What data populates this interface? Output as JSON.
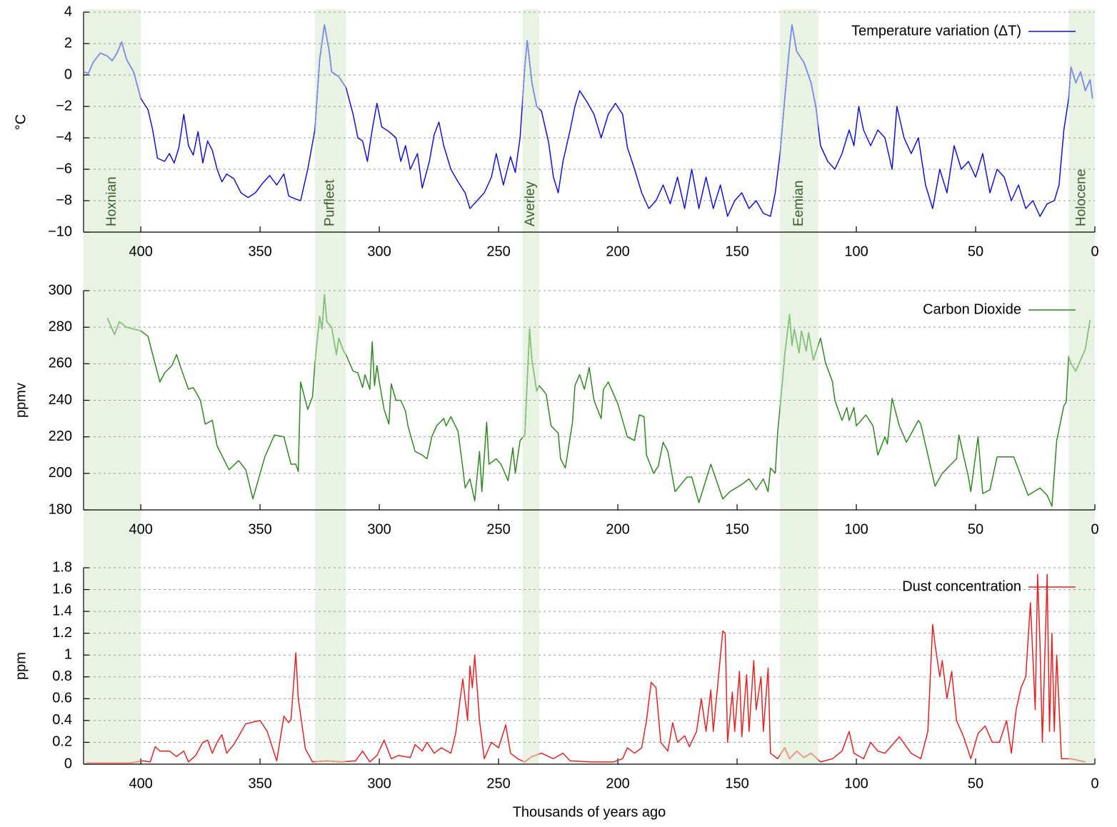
{
  "chart_data": [
    {
      "type": "line",
      "y_label": "°C",
      "legend": "upper right",
      "grid": true,
      "xlim": [
        424,
        0
      ],
      "xticks": [
        400,
        350,
        300,
        250,
        200,
        150,
        100,
        50,
        0
      ],
      "ylim": [
        -10,
        4
      ],
      "yticks": [
        {
          "value": -10,
          "label": "−10"
        },
        {
          "value": -8,
          "label": "−8"
        },
        {
          "value": -6,
          "label": "−6"
        },
        {
          "value": -4,
          "label": "−4"
        },
        {
          "value": -2,
          "label": "−2"
        },
        0,
        2,
        4
      ],
      "periods": [
        {
          "label": "Hoxnian",
          "start": 424,
          "end": 400
        },
        {
          "label": "Purfleet",
          "start": 327,
          "end": 314
        },
        {
          "label": "Averley",
          "start": 240,
          "end": 233
        },
        {
          "label": "Eemian",
          "start": 132,
          "end": 116
        },
        {
          "label": "Holocene",
          "start": 11,
          "end": 0
        }
      ],
      "period_color": "#e9f3e4",
      "x": [
        424,
        422,
        420,
        417,
        414,
        412,
        410,
        408,
        406,
        403,
        400,
        397,
        395,
        393,
        390,
        388,
        386,
        384,
        382,
        380,
        378,
        376,
        374,
        372,
        370,
        368,
        366,
        364,
        361,
        358,
        355,
        352,
        349,
        346,
        343,
        340,
        338,
        335,
        333,
        330,
        327,
        325,
        323,
        321,
        320,
        317,
        314,
        311,
        309,
        307,
        305,
        303,
        301,
        299,
        296,
        293,
        291,
        289,
        287,
        284,
        282,
        279,
        277,
        275,
        273,
        270,
        267,
        264,
        262,
        259,
        256,
        253,
        251,
        248,
        245,
        243,
        241,
        239,
        238,
        236,
        234,
        232,
        229,
        227,
        225,
        223,
        220,
        218,
        216,
        213,
        210,
        207,
        204,
        201,
        198,
        196,
        193,
        190,
        187,
        184,
        181,
        178,
        175,
        172,
        169,
        166,
        163,
        160,
        157,
        154,
        151,
        148,
        145,
        142,
        139,
        136,
        134,
        132,
        130,
        128,
        127,
        125,
        122,
        119,
        117,
        115,
        112,
        109,
        106,
        103,
        101,
        99,
        97,
        94,
        91,
        88,
        85,
        83,
        80,
        77,
        74,
        71,
        68,
        65,
        62,
        59,
        56,
        53,
        50,
        47,
        44,
        41,
        38,
        35,
        32,
        29,
        26,
        23,
        20,
        17,
        15,
        13,
        11,
        10,
        8,
        6,
        4,
        2,
        1
      ],
      "series": [
        {
          "name": "Temperature variation (ΔT)",
          "color": "#1010e0",
          "highlight_color": "#7b8cf0",
          "values": [
            0.2,
            0.1,
            0.8,
            1.4,
            1.2,
            0.9,
            1.4,
            2.1,
            1.0,
            0.2,
            -1.5,
            -2.2,
            -3.5,
            -5.3,
            -5.5,
            -5.0,
            -5.6,
            -4.6,
            -2.5,
            -4.5,
            -5.1,
            -3.6,
            -5.6,
            -4.2,
            -4.8,
            -6.0,
            -6.8,
            -6.3,
            -6.6,
            -7.5,
            -7.8,
            -7.5,
            -6.9,
            -6.4,
            -7.0,
            -6.3,
            -7.7,
            -7.9,
            -8.0,
            -6.0,
            -3.5,
            1.0,
            3.2,
            1.5,
            0.2,
            -0.1,
            -0.8,
            -2.5,
            -4.0,
            -4.2,
            -5.5,
            -3.5,
            -1.8,
            -3.3,
            -3.6,
            -4.0,
            -5.5,
            -4.5,
            -6.0,
            -5.0,
            -7.2,
            -5.5,
            -3.8,
            -3.0,
            -4.5,
            -6.0,
            -6.8,
            -7.5,
            -8.5,
            -8.0,
            -7.5,
            -6.5,
            -5.0,
            -7.0,
            -5.2,
            -6.2,
            -4.0,
            0.5,
            2.2,
            -0.5,
            -2.0,
            -2.3,
            -4.3,
            -6.5,
            -7.5,
            -5.5,
            -3.5,
            -2.0,
            -1.0,
            -1.7,
            -2.5,
            -4.0,
            -2.5,
            -1.8,
            -2.5,
            -4.6,
            -6.0,
            -7.5,
            -8.5,
            -8.0,
            -7.0,
            -8.2,
            -6.5,
            -8.5,
            -6.0,
            -8.5,
            -6.5,
            -8.5,
            -7.0,
            -9.0,
            -8.0,
            -7.5,
            -8.5,
            -8.0,
            -8.8,
            -9.0,
            -7.5,
            -5.0,
            -1.5,
            1.8,
            3.2,
            1.5,
            0.8,
            -0.5,
            -2.0,
            -4.5,
            -5.5,
            -6.0,
            -5.0,
            -3.5,
            -4.5,
            -2.0,
            -3.5,
            -4.5,
            -3.5,
            -4.0,
            -6.0,
            -2.0,
            -4.0,
            -5.0,
            -4.0,
            -7.0,
            -8.5,
            -6.0,
            -7.5,
            -4.5,
            -6.0,
            -5.5,
            -6.5,
            -5.0,
            -7.5,
            -6.0,
            -6.5,
            -8.0,
            -7.0,
            -8.5,
            -8.0,
            -9.0,
            -8.2,
            -8.0,
            -7.0,
            -3.5,
            -1.5,
            0.5,
            -0.5,
            0.2,
            -1.0,
            -0.3,
            -1.5
          ]
        }
      ]
    },
    {
      "type": "line",
      "y_label": "ppmv",
      "legend": "upper right",
      "grid": true,
      "xlim": [
        424,
        0
      ],
      "xticks": [
        400,
        350,
        300,
        250,
        200,
        150,
        100,
        50,
        0
      ],
      "ylim": [
        180,
        300
      ],
      "yticks": [
        180,
        200,
        220,
        240,
        260,
        280,
        300
      ],
      "x": [
        414,
        411,
        409,
        406,
        400,
        397,
        395,
        392,
        390,
        387,
        385,
        383,
        380,
        378,
        375,
        373,
        370,
        368,
        363,
        359,
        356,
        353,
        348,
        344,
        340,
        337,
        335,
        334,
        333,
        330,
        328,
        327,
        325,
        324,
        323,
        322,
        320,
        318,
        317,
        315,
        314,
        311,
        309,
        307,
        306,
        304,
        303,
        302,
        301,
        300,
        298,
        296,
        295,
        293,
        291,
        289,
        288,
        285,
        282,
        280,
        278,
        276,
        273,
        272,
        270,
        267,
        265,
        264,
        262,
        260,
        258,
        257,
        255,
        254,
        251,
        249,
        246,
        244,
        243,
        241,
        239,
        237,
        236,
        234,
        233,
        231,
        230,
        228,
        225,
        224,
        222,
        219,
        218,
        216,
        214,
        212,
        210,
        207,
        206,
        204,
        200,
        196,
        193,
        191,
        189,
        188,
        185,
        183,
        181,
        179,
        176,
        171,
        169,
        166,
        161,
        156,
        153,
        148,
        145,
        142,
        139,
        137,
        136,
        134,
        133,
        131,
        130,
        128,
        127,
        126,
        124,
        123,
        121,
        120,
        118,
        115,
        113,
        110,
        109,
        106,
        104,
        103,
        101,
        100,
        96,
        93,
        91,
        88,
        87,
        85,
        82,
        79,
        74,
        73,
        67,
        64,
        58,
        57,
        53,
        52,
        49,
        47,
        44,
        41,
        34,
        28,
        23,
        20,
        18,
        16,
        13,
        12,
        11,
        10,
        8,
        6,
        4,
        2
      ],
      "series": [
        {
          "name": "Carbon Dioxide",
          "color": "#2e8a1e",
          "highlight_color": "#86c27a",
          "values": [
            285,
            276,
            283,
            280,
            278,
            275,
            265,
            250,
            255,
            259,
            265,
            257,
            246,
            247,
            240,
            227,
            229,
            215,
            202,
            207,
            202,
            186,
            209,
            221,
            220,
            205,
            205,
            201,
            250,
            235,
            242,
            260,
            286,
            279,
            298,
            283,
            280,
            265,
            274,
            267,
            265,
            256,
            255,
            247,
            254,
            246,
            272,
            248,
            259,
            250,
            235,
            227,
            249,
            240,
            240,
            234,
            226,
            212,
            210,
            208,
            220,
            226,
            230,
            226,
            231,
            223,
            203,
            192,
            197,
            185,
            212,
            190,
            228,
            205,
            208,
            205,
            196,
            214,
            200,
            218,
            221,
            279,
            262,
            245,
            248,
            245,
            243,
            226,
            222,
            208,
            203,
            228,
            248,
            254,
            246,
            258,
            240,
            230,
            246,
            250,
            238,
            220,
            218,
            232,
            231,
            210,
            200,
            204,
            217,
            212,
            190,
            198,
            198,
            184,
            205,
            186,
            190,
            194,
            197,
            191,
            197,
            190,
            203,
            200,
            222,
            250,
            265,
            287,
            270,
            279,
            266,
            278,
            267,
            277,
            262,
            274,
            261,
            250,
            240,
            229,
            236,
            229,
            236,
            226,
            232,
            226,
            210,
            220,
            216,
            241,
            226,
            217,
            229,
            227,
            193,
            200,
            208,
            221,
            198,
            190,
            220,
            189,
            191,
            209,
            209,
            188,
            192,
            188,
            182,
            218,
            237,
            239,
            264,
            260,
            256,
            262,
            268,
            284
          ]
        }
      ]
    },
    {
      "type": "line",
      "y_label": "ppm",
      "x_label": "Thousands of years ago",
      "legend": "upper right",
      "grid": true,
      "xlim": [
        424,
        0
      ],
      "xticks": [
        400,
        350,
        300,
        250,
        200,
        150,
        100,
        50,
        0
      ],
      "ylim": [
        0,
        1.8
      ],
      "yticks": [
        0,
        0.2,
        0.4,
        0.6,
        0.8,
        1,
        1.2,
        1.4,
        1.6,
        1.8
      ],
      "x": [
        423,
        405,
        399,
        396,
        394,
        392,
        388,
        385,
        382,
        380,
        377,
        374,
        372,
        370,
        368,
        366,
        364,
        361,
        356,
        350,
        347,
        343,
        340,
        338,
        337,
        335,
        334,
        331,
        328,
        322,
        316,
        310,
        307,
        304,
        301,
        298,
        295,
        292,
        287,
        285,
        282,
        280,
        277,
        274,
        270,
        268,
        265,
        263,
        262,
        261,
        260,
        258,
        256,
        253,
        250,
        247,
        245,
        242,
        239,
        236,
        232,
        227,
        223,
        220,
        211,
        202,
        198,
        196,
        193,
        190,
        188,
        186,
        184,
        182,
        179,
        177,
        175,
        172,
        170,
        167,
        165,
        163,
        161,
        160,
        158,
        156,
        155,
        154,
        152,
        151,
        149,
        148,
        146,
        145,
        143,
        142,
        140,
        139,
        137,
        136,
        133,
        130,
        128,
        125,
        122,
        119,
        115,
        110,
        106,
        103,
        101,
        97,
        94,
        91,
        88,
        82,
        77,
        73,
        70,
        68,
        67,
        65,
        64,
        62,
        60,
        58,
        55,
        52,
        49,
        46,
        43,
        40,
        37,
        35,
        33,
        31,
        29,
        27,
        25,
        24,
        23,
        22,
        20,
        19,
        18,
        17,
        16,
        14,
        10,
        4
      ],
      "series": [
        {
          "name": "Dust concentration",
          "color": "#e82020",
          "highlight_color": "#f29080",
          "values": [
            0.01,
            0.01,
            0.03,
            0.02,
            0.16,
            0.12,
            0.12,
            0.07,
            0.12,
            0.02,
            0.08,
            0.2,
            0.22,
            0.1,
            0.2,
            0.27,
            0.1,
            0.18,
            0.37,
            0.4,
            0.3,
            0.03,
            0.44,
            0.38,
            0.41,
            1.02,
            0.6,
            0.14,
            0.02,
            0.03,
            0.02,
            0.03,
            0.12,
            0.02,
            0.08,
            0.22,
            0.05,
            0.08,
            0.06,
            0.18,
            0.12,
            0.2,
            0.1,
            0.15,
            0.1,
            0.28,
            0.78,
            0.4,
            0.9,
            0.7,
            1.0,
            0.4,
            0.05,
            0.2,
            0.15,
            0.36,
            0.1,
            0.05,
            0.02,
            0.07,
            0.1,
            0.05,
            0.1,
            0.03,
            0.02,
            0.02,
            0.05,
            0.15,
            0.1,
            0.15,
            0.4,
            0.75,
            0.7,
            0.2,
            0.12,
            0.38,
            0.2,
            0.26,
            0.16,
            0.3,
            0.6,
            0.3,
            0.68,
            0.3,
            0.75,
            1.22,
            1.2,
            0.2,
            0.66,
            0.3,
            0.85,
            0.25,
            0.82,
            0.3,
            0.95,
            0.5,
            0.8,
            0.3,
            0.88,
            0.1,
            0.05,
            0.15,
            0.05,
            0.12,
            0.06,
            0.1,
            0.02,
            0.05,
            0.12,
            0.3,
            0.1,
            0.05,
            0.2,
            0.12,
            0.1,
            0.25,
            0.1,
            0.05,
            0.3,
            1.28,
            1.1,
            0.8,
            0.95,
            0.6,
            0.85,
            0.4,
            0.25,
            0.05,
            0.28,
            0.35,
            0.2,
            0.2,
            0.4,
            0.1,
            0.5,
            0.7,
            0.8,
            1.48,
            0.5,
            1.74,
            1.1,
            0.2,
            1.74,
            0.3,
            1.2,
            0.3,
            1.0,
            0.05,
            0.05,
            0.02
          ]
        }
      ]
    }
  ]
}
